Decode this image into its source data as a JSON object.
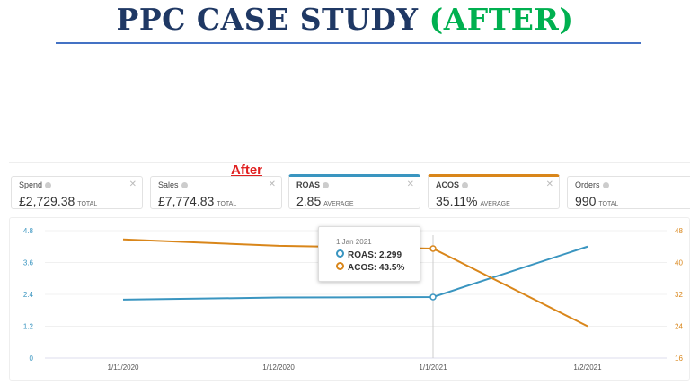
{
  "title": {
    "main": "PPC CASE STUDY",
    "highlight": "(AFTER)",
    "main_color": "#1f3864",
    "highlight_color": "#00b050"
  },
  "label_after": "After",
  "metrics": [
    {
      "label": "Spend",
      "value": "£2,729.38",
      "unit": "TOTAL"
    },
    {
      "label": "Sales",
      "value": "£7,774.83",
      "unit": "TOTAL"
    },
    {
      "label": "ROAS",
      "value": "2.85",
      "unit": "AVERAGE",
      "color": "#3a95c0"
    },
    {
      "label": "ACOS",
      "value": "35.11%",
      "unit": "AVERAGE",
      "color": "#d9861a"
    },
    {
      "label": "Orders",
      "value": "990",
      "unit": "TOTAL"
    }
  ],
  "tooltip": {
    "date": "1 Jan 2021",
    "roas": "ROAS: 2.299",
    "acos": "ACOS: 43.5%"
  },
  "chart_data": {
    "type": "line",
    "categories": [
      "1/11/2020",
      "1/12/2020",
      "1/1/2021",
      "1/2/2021"
    ],
    "series": [
      {
        "name": "ROAS",
        "axis": "left",
        "color": "#3a95c0",
        "values": [
          2.2,
          2.28,
          2.299,
          4.2
        ]
      },
      {
        "name": "ACOS",
        "axis": "right",
        "color": "#d9861a",
        "values": [
          45.8,
          44.2,
          43.5,
          24
        ]
      }
    ],
    "left_axis": {
      "ticks": [
        "0",
        "1.2",
        "2.4",
        "3.6",
        "4.8"
      ],
      "range": [
        0,
        4.8
      ]
    },
    "right_axis": {
      "ticks": [
        "16",
        "24",
        "32",
        "40",
        "48"
      ],
      "range": [
        16,
        48
      ]
    },
    "grid": true,
    "highlighted_category": "1/1/2021"
  }
}
